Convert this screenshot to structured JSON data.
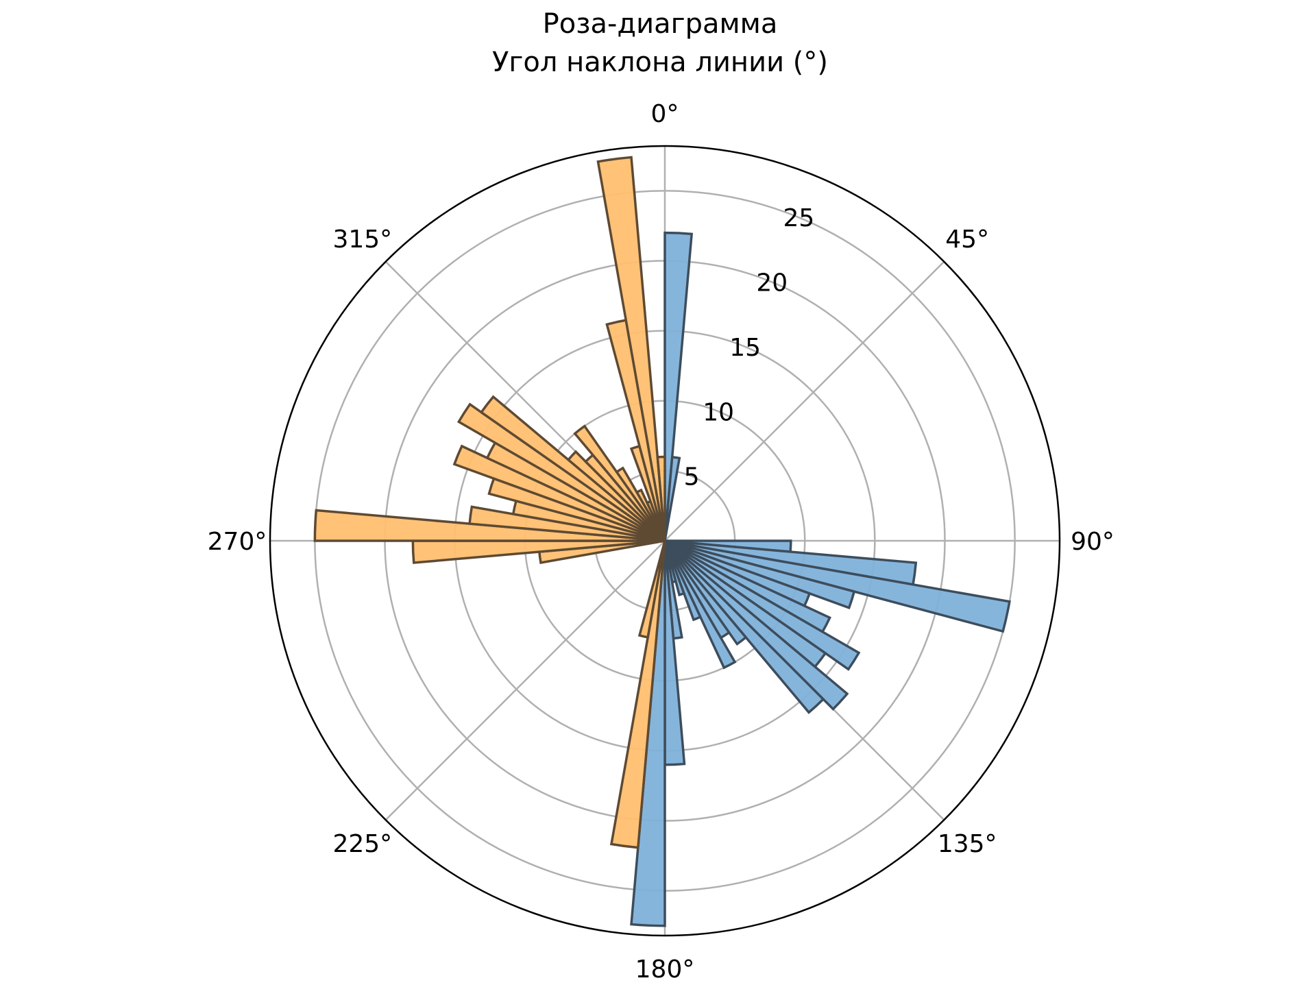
{
  "chart_data": {
    "type": "polar-bar",
    "title_lines": [
      "Роза-диаграмма",
      "Угол наклона линии (°)"
    ],
    "theta_zero": "N",
    "theta_direction": "clockwise",
    "angle_ticks": [
      {
        "deg": 0,
        "label": "0°"
      },
      {
        "deg": 45,
        "label": "45°"
      },
      {
        "deg": 90,
        "label": "90°"
      },
      {
        "deg": 135,
        "label": "135°"
      },
      {
        "deg": 180,
        "label": "180°"
      },
      {
        "deg": 225,
        "label": "225°"
      },
      {
        "deg": 270,
        "label": "270°"
      },
      {
        "deg": 315,
        "label": "315°"
      }
    ],
    "radial_ticks": [
      {
        "value": 5,
        "label": "5"
      },
      {
        "value": 10,
        "label": "10"
      },
      {
        "value": 15,
        "label": "15"
      },
      {
        "value": 20,
        "label": "20"
      },
      {
        "value": 25,
        "label": "25"
      }
    ],
    "rlim": [
      0,
      28.2
    ],
    "grid": true,
    "bin_width_deg": 5,
    "series": [
      {
        "color": "#7fb1da",
        "edge_color": "#3d4d5c",
        "bins_start_deg": [
          0,
          5,
          90,
          95,
          100,
          105,
          110,
          115,
          120,
          125,
          130,
          135,
          140,
          145,
          150,
          155,
          160,
          165,
          170,
          175,
          180
        ],
        "values": [
          22,
          6,
          9,
          18,
          25,
          14,
          11,
          13,
          16,
          14,
          17,
          16,
          9,
          8,
          10,
          6,
          4,
          3,
          7,
          16,
          27.5
        ]
      },
      {
        "color": "#ffbf70",
        "edge_color": "#5e4a33",
        "bins_start_deg": [
          185,
          190,
          260,
          265,
          270,
          275,
          280,
          285,
          290,
          295,
          300,
          305,
          310,
          315,
          320,
          325,
          330,
          335,
          340,
          345,
          350,
          355
        ],
        "values": [
          22,
          7,
          9,
          18,
          25,
          14,
          11,
          13,
          16,
          14,
          17,
          16,
          9,
          8,
          10,
          6,
          4,
          3,
          7,
          16,
          27.5,
          6
        ]
      }
    ]
  }
}
